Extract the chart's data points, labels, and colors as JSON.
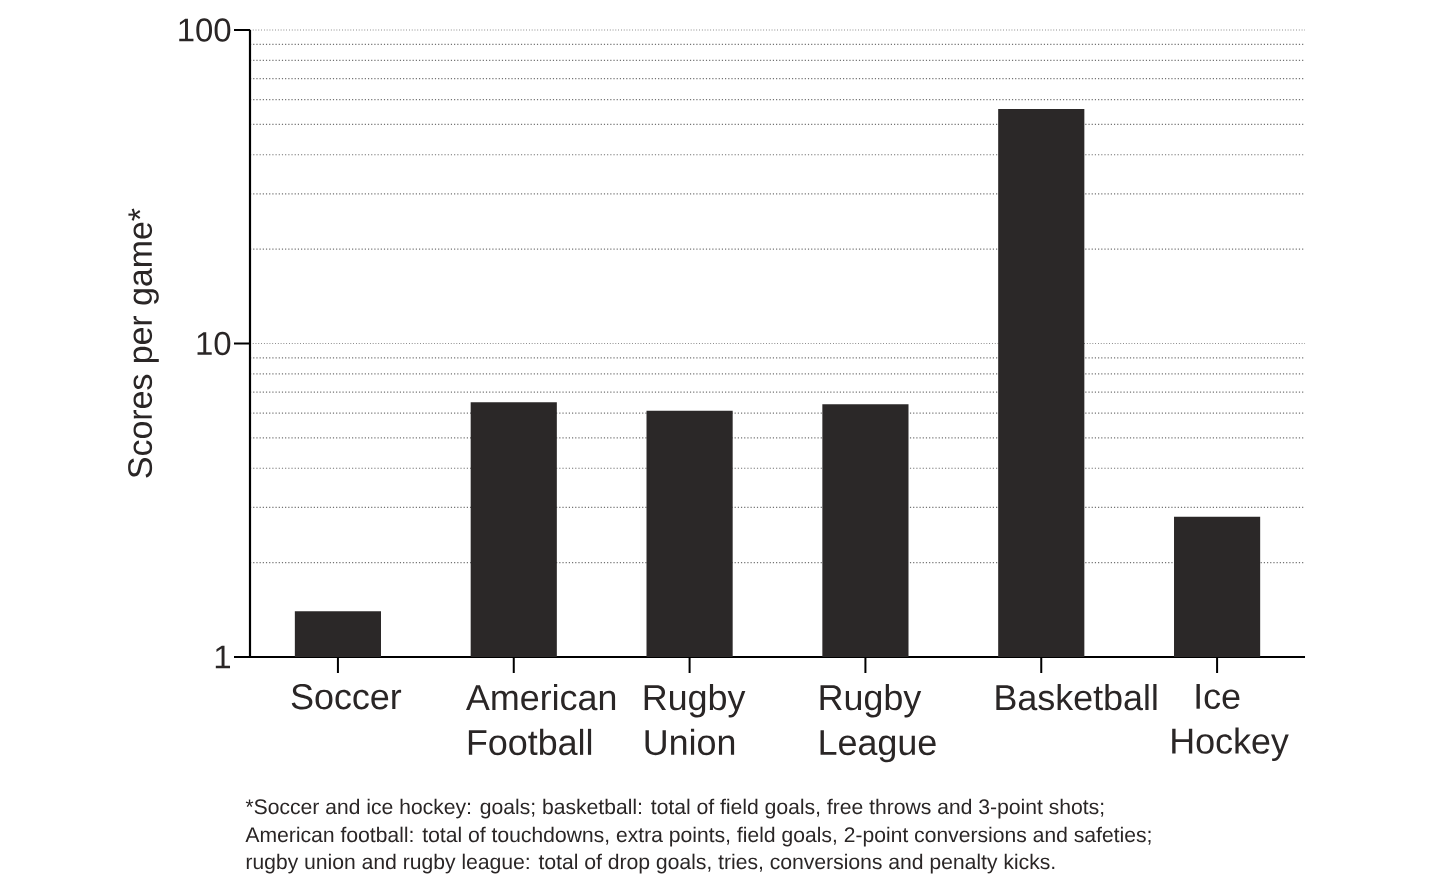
{
  "chart_data": {
    "type": "bar",
    "ylabel": "Scores per game*",
    "categories": [
      "Soccer",
      "American Football",
      "Rugby Union",
      "Rugby League",
      "Basketball",
      "Ice Hockey"
    ],
    "values": [
      1.4,
      6.5,
      6.1,
      6.4,
      56,
      2.8
    ],
    "color": "#2b2828",
    "log": true,
    "ylim": [
      1,
      100
    ],
    "yticks": [
      1,
      10,
      100
    ],
    "grid": "y",
    "annotations": [
      "*Soccer and ice hockey: goals; basketball: total of field goals, free throws and 3-point shots;",
      "American football: total of touchdowns, extra points, field goals, 2-point conversions and safeties;",
      "rugby union and rugby league: total of drop goals, tries, conversions and penalty kicks."
    ]
  }
}
